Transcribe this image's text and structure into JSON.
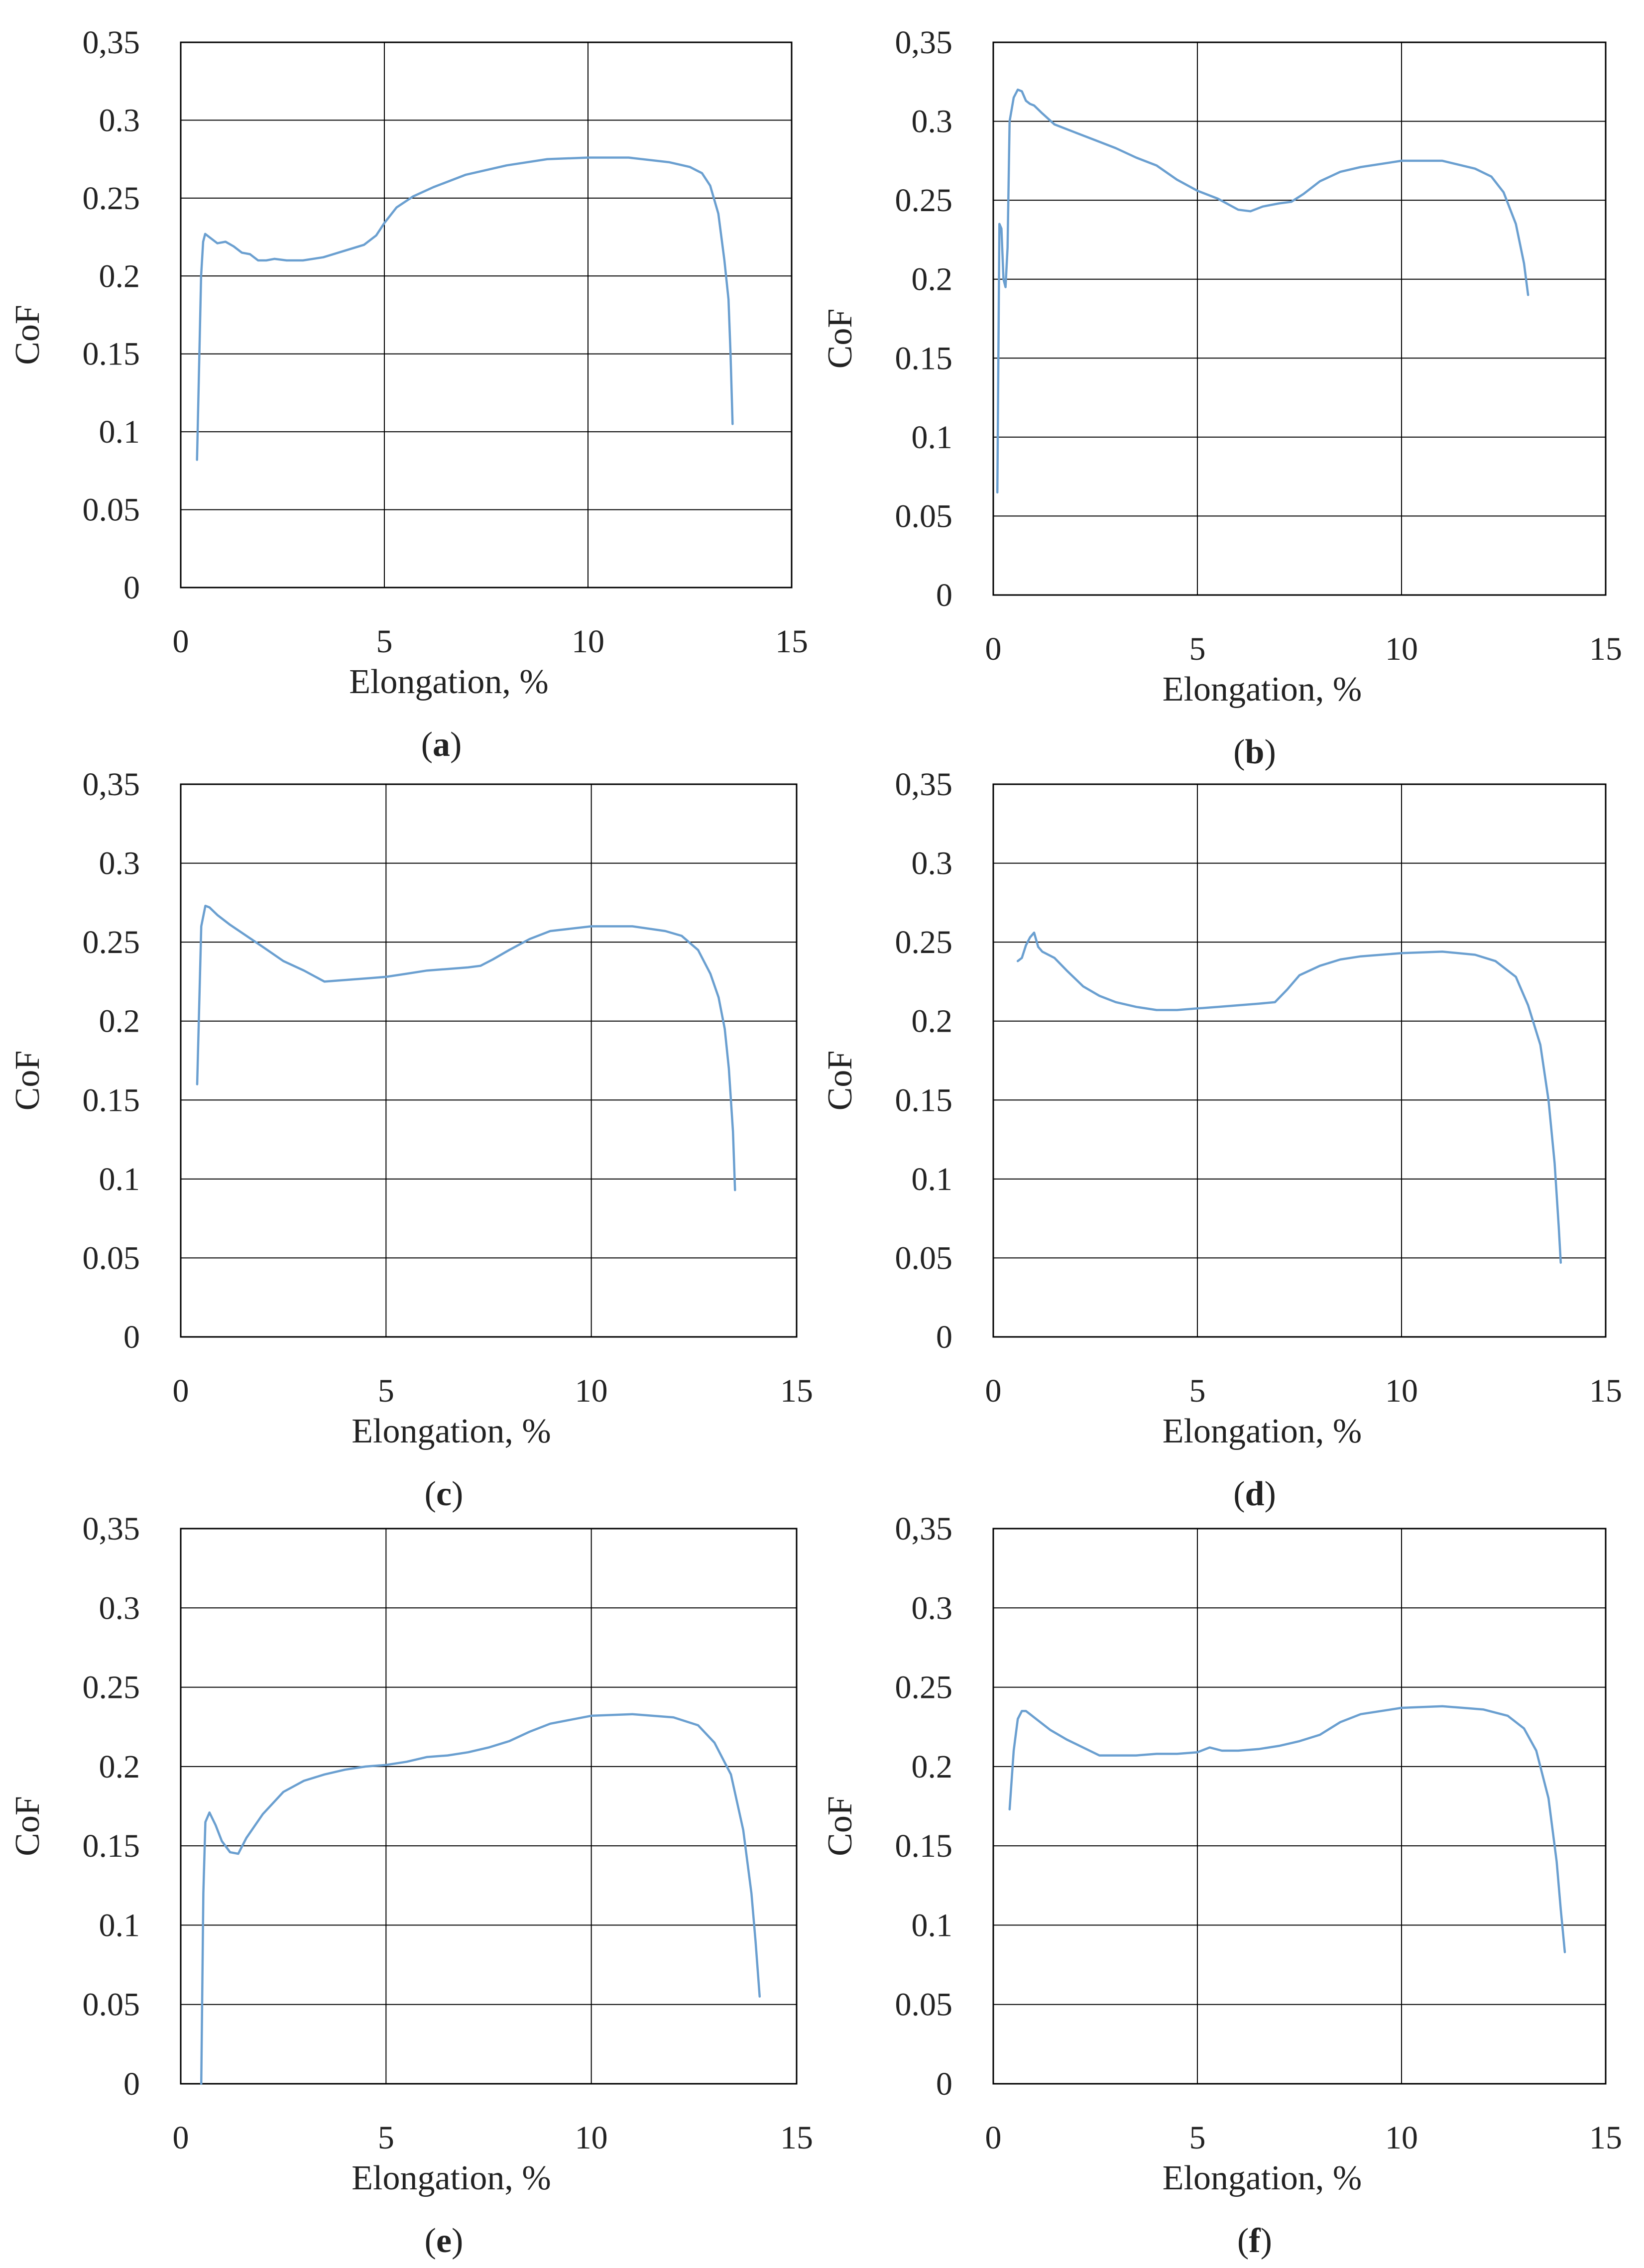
{
  "figure": {
    "line_color": "#6a9fd0",
    "frame_color": "#000000",
    "grid_color": "#000000"
  },
  "chart_data": [
    {
      "panel": "a",
      "caption_open": "(",
      "caption_letter": "a",
      "caption_close": ")",
      "type": "line",
      "xlabel": "Elongation, %",
      "ylabel": "CoF",
      "xlim": [
        0,
        15
      ],
      "ylim": [
        0,
        0.35
      ],
      "xticks": [
        "0",
        "5",
        "10",
        "15"
      ],
      "yticks": [
        "0",
        "0.05",
        "0.1",
        "0.15",
        "0.2",
        "0.25",
        "0.3",
        "0,35"
      ],
      "grid": "x=5,10; y every 0.05",
      "x": [
        0.4,
        0.5,
        0.55,
        0.6,
        0.7,
        0.9,
        1.1,
        1.3,
        1.5,
        1.7,
        1.9,
        2.1,
        2.3,
        2.6,
        3.0,
        3.5,
        4.0,
        4.5,
        4.8,
        5.0,
        5.3,
        5.7,
        6.2,
        7.0,
        8.0,
        9.0,
        10.0,
        11.0,
        12.0,
        12.5,
        12.8,
        13.0,
        13.2,
        13.35,
        13.45,
        13.5,
        13.55
      ],
      "y": [
        0.082,
        0.2,
        0.222,
        0.227,
        0.225,
        0.221,
        0.222,
        0.219,
        0.215,
        0.214,
        0.21,
        0.21,
        0.211,
        0.21,
        0.21,
        0.212,
        0.216,
        0.22,
        0.226,
        0.234,
        0.244,
        0.251,
        0.257,
        0.265,
        0.271,
        0.275,
        0.276,
        0.276,
        0.273,
        0.27,
        0.266,
        0.258,
        0.24,
        0.21,
        0.185,
        0.15,
        0.105
      ]
    },
    {
      "panel": "b",
      "caption_open": "(",
      "caption_letter": "b",
      "caption_close": ")",
      "type": "line",
      "xlabel": "Elongation, %",
      "ylabel": "CoF",
      "xlim": [
        0,
        15
      ],
      "ylim": [
        0,
        0.35
      ],
      "xticks": [
        "0",
        "5",
        "10",
        "15"
      ],
      "yticks": [
        "0",
        "0.05",
        "0.1",
        "0.15",
        "0.2",
        "0.25",
        "0.3",
        "0,35"
      ],
      "grid": "x=5,10; y every 0.05",
      "x": [
        0.1,
        0.15,
        0.2,
        0.25,
        0.3,
        0.35,
        0.4,
        0.5,
        0.6,
        0.7,
        0.8,
        0.9,
        1.0,
        1.2,
        1.5,
        2.0,
        2.5,
        3.0,
        3.5,
        4.0,
        4.5,
        5.0,
        5.5,
        6.0,
        6.3,
        6.6,
        7.0,
        7.3,
        7.6,
        8.0,
        8.5,
        9.0,
        10.0,
        11.0,
        11.8,
        12.2,
        12.5,
        12.8,
        13.0,
        13.1
      ],
      "y": [
        0.065,
        0.235,
        0.232,
        0.2,
        0.195,
        0.22,
        0.3,
        0.315,
        0.32,
        0.319,
        0.313,
        0.311,
        0.31,
        0.305,
        0.298,
        0.293,
        0.288,
        0.283,
        0.277,
        0.272,
        0.263,
        0.256,
        0.251,
        0.244,
        0.243,
        0.246,
        0.248,
        0.249,
        0.254,
        0.262,
        0.268,
        0.271,
        0.275,
        0.275,
        0.27,
        0.265,
        0.255,
        0.235,
        0.21,
        0.19
      ]
    },
    {
      "panel": "c",
      "caption_open": "(",
      "caption_letter": "c",
      "caption_close": ")",
      "type": "line",
      "xlabel": "Elongation, %",
      "ylabel": "CoF",
      "xlim": [
        0,
        15
      ],
      "ylim": [
        0,
        0.35
      ],
      "xticks": [
        "0",
        "5",
        "10",
        "15"
      ],
      "yticks": [
        "0",
        "0.05",
        "0.1",
        "0.15",
        "0.2",
        "0.25",
        "0.3",
        "0,35"
      ],
      "grid": "x=5,10; y every 0.05",
      "x": [
        0.4,
        0.5,
        0.6,
        0.7,
        0.9,
        1.2,
        1.6,
        2.0,
        2.5,
        3.0,
        3.5,
        4.0,
        4.5,
        5.0,
        5.5,
        6.0,
        6.5,
        7.0,
        7.3,
        7.6,
        8.0,
        8.5,
        9.0,
        10.0,
        11.0,
        11.8,
        12.2,
        12.6,
        12.9,
        13.1,
        13.25,
        13.35,
        13.45,
        13.5
      ],
      "y": [
        0.16,
        0.26,
        0.273,
        0.272,
        0.267,
        0.261,
        0.254,
        0.247,
        0.238,
        0.232,
        0.225,
        0.226,
        0.227,
        0.228,
        0.23,
        0.232,
        0.233,
        0.234,
        0.235,
        0.239,
        0.245,
        0.252,
        0.257,
        0.26,
        0.26,
        0.257,
        0.254,
        0.245,
        0.23,
        0.215,
        0.195,
        0.17,
        0.13,
        0.093
      ]
    },
    {
      "panel": "d",
      "caption_open": "(",
      "caption_letter": "d",
      "caption_close": ")",
      "type": "line",
      "xlabel": "Elongation, %",
      "ylabel": "CoF",
      "xlim": [
        0,
        15
      ],
      "ylim": [
        0,
        0.35
      ],
      "xticks": [
        "0",
        "5",
        "10",
        "15"
      ],
      "yticks": [
        "0",
        "0.05",
        "0.1",
        "0.15",
        "0.2",
        "0.25",
        "0.3",
        "0,35"
      ],
      "grid": "x=5,10; y every 0.05",
      "x": [
        0.6,
        0.7,
        0.8,
        0.9,
        1.0,
        1.1,
        1.2,
        1.5,
        1.8,
        2.2,
        2.6,
        3.0,
        3.5,
        4.0,
        4.5,
        5.0,
        5.5,
        6.0,
        6.5,
        6.9,
        7.2,
        7.5,
        8.0,
        8.5,
        9.0,
        10.0,
        11.0,
        11.8,
        12.3,
        12.8,
        13.1,
        13.4,
        13.6,
        13.75,
        13.85,
        13.9
      ],
      "y": [
        0.238,
        0.24,
        0.248,
        0.253,
        0.256,
        0.247,
        0.244,
        0.24,
        0.232,
        0.222,
        0.216,
        0.212,
        0.209,
        0.207,
        0.207,
        0.208,
        0.209,
        0.21,
        0.211,
        0.212,
        0.22,
        0.229,
        0.235,
        0.239,
        0.241,
        0.243,
        0.244,
        0.242,
        0.238,
        0.228,
        0.21,
        0.185,
        0.15,
        0.11,
        0.07,
        0.047
      ]
    },
    {
      "panel": "e",
      "caption_open": "(",
      "caption_letter": "e",
      "caption_close": ")",
      "type": "line",
      "xlabel": "Elongation, %",
      "ylabel": "CoF",
      "xlim": [
        0,
        15
      ],
      "ylim": [
        0,
        0.35
      ],
      "xticks": [
        "0",
        "5",
        "10",
        "15"
      ],
      "yticks": [
        "0",
        "0.05",
        "0.1",
        "0.15",
        "0.2",
        "0.25",
        "0.3",
        "0,35"
      ],
      "grid": "x=5,10; y every 0.05",
      "x": [
        0.5,
        0.55,
        0.6,
        0.7,
        0.85,
        1.0,
        1.2,
        1.4,
        1.6,
        2.0,
        2.5,
        3.0,
        3.5,
        4.0,
        4.5,
        5.0,
        5.5,
        6.0,
        6.5,
        7.0,
        7.5,
        8.0,
        8.5,
        9.0,
        10.0,
        11.0,
        12.0,
        12.6,
        13.0,
        13.4,
        13.7,
        13.9,
        14.0,
        14.1
      ],
      "y": [
        0.0,
        0.12,
        0.165,
        0.171,
        0.163,
        0.153,
        0.146,
        0.145,
        0.155,
        0.17,
        0.184,
        0.191,
        0.195,
        0.198,
        0.2,
        0.201,
        0.203,
        0.206,
        0.207,
        0.209,
        0.212,
        0.216,
        0.222,
        0.227,
        0.232,
        0.233,
        0.231,
        0.226,
        0.215,
        0.195,
        0.16,
        0.12,
        0.09,
        0.055
      ]
    },
    {
      "panel": "f",
      "caption_open": "(",
      "caption_letter": "f",
      "caption_close": ")",
      "type": "line",
      "xlabel": "Elongation, %",
      "ylabel": "CoF",
      "xlim": [
        0,
        15
      ],
      "ylim": [
        0,
        0.35
      ],
      "xticks": [
        "0",
        "5",
        "10",
        "15"
      ],
      "yticks": [
        "0",
        "0.05",
        "0.1",
        "0.15",
        "0.2",
        "0.25",
        "0.3",
        "0,35"
      ],
      "grid": "x=5,10; y every 0.05",
      "x": [
        0.4,
        0.5,
        0.6,
        0.7,
        0.8,
        0.9,
        1.1,
        1.4,
        1.8,
        2.2,
        2.6,
        3.0,
        3.5,
        4.0,
        4.5,
        5.0,
        5.3,
        5.6,
        6.0,
        6.5,
        7.0,
        7.5,
        8.0,
        8.5,
        9.0,
        10.0,
        11.0,
        12.0,
        12.6,
        13.0,
        13.3,
        13.6,
        13.8,
        13.9,
        14.0
      ],
      "y": [
        0.173,
        0.21,
        0.23,
        0.235,
        0.235,
        0.233,
        0.229,
        0.223,
        0.217,
        0.212,
        0.207,
        0.207,
        0.207,
        0.208,
        0.208,
        0.209,
        0.212,
        0.21,
        0.21,
        0.211,
        0.213,
        0.216,
        0.22,
        0.228,
        0.233,
        0.237,
        0.238,
        0.236,
        0.232,
        0.224,
        0.21,
        0.18,
        0.14,
        0.11,
        0.083
      ]
    }
  ]
}
